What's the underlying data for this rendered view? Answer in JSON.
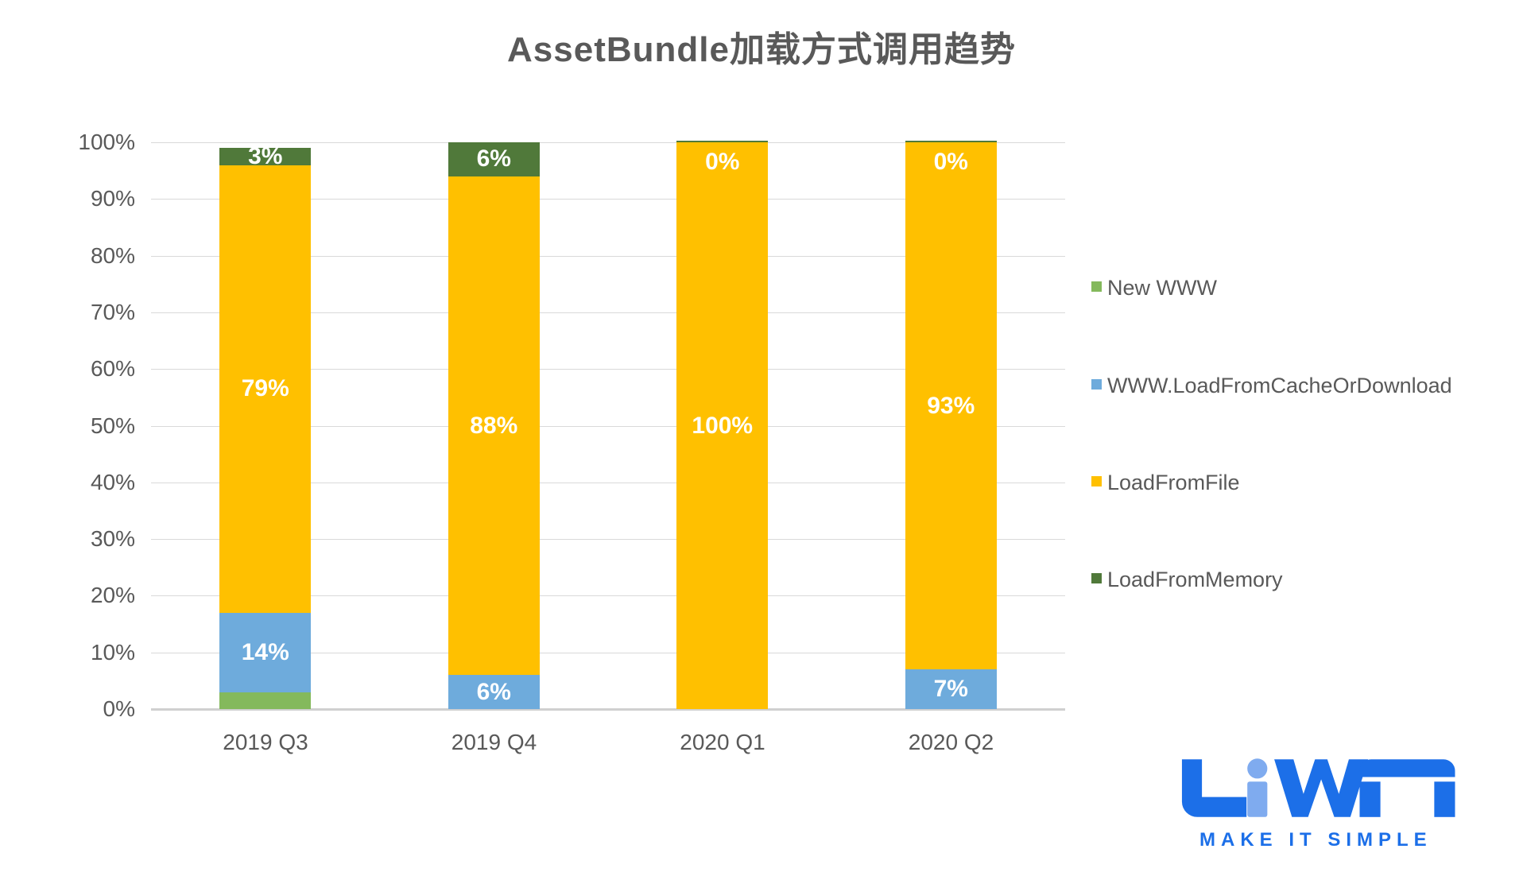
{
  "title": "AssetBundle加载方式调用趋势",
  "colors": {
    "new_www": "#84B95C",
    "cache": "#6EABDC",
    "file": "#FFC000",
    "memory": "#50793A",
    "grid": "#D9D9D9",
    "axis_text": "#595959",
    "value_label_text": "#FFFFFF",
    "logo_blue": "#1C6FE8",
    "logo_light_blue": "#7FABEF"
  },
  "chart_data": {
    "type": "bar",
    "stacked": true,
    "title": "AssetBundle加载方式调用趋势",
    "categories": [
      "2019 Q3",
      "2019 Q4",
      "2020 Q1",
      "2020 Q2"
    ],
    "series": [
      {
        "name": "New WWW",
        "color_key": "new_www",
        "values": [
          3,
          0,
          0,
          0
        ],
        "labels": [
          "",
          "",
          "",
          ""
        ]
      },
      {
        "name": "WWW.LoadFromCacheOrDownload",
        "color_key": "cache",
        "values": [
          14,
          6,
          0,
          7
        ],
        "labels": [
          "14%",
          "6%",
          "0%",
          "7%"
        ]
      },
      {
        "name": "LoadFromFile",
        "color_key": "file",
        "values": [
          79,
          88,
          100,
          93
        ],
        "labels": [
          "79%",
          "88%",
          "100%",
          "93%"
        ]
      },
      {
        "name": "LoadFromMemory",
        "color_key": "memory",
        "values": [
          3,
          6,
          0,
          0
        ],
        "labels": [
          "3%",
          "6%",
          "0%",
          "0%"
        ]
      }
    ],
    "y_ticks": [
      "100%",
      "90%",
      "80%",
      "70%",
      "60%",
      "50%",
      "40%",
      "30%",
      "20%",
      "10%",
      "0%"
    ],
    "ylim": [
      0,
      100
    ],
    "grid": true,
    "legend_position": "right"
  },
  "legend": {
    "items": [
      {
        "label": "New WWW",
        "color_key": "new_www"
      },
      {
        "label": "WWW.LoadFromCacheOrDownload",
        "color_key": "cache"
      },
      {
        "label": "LoadFromFile",
        "color_key": "file"
      },
      {
        "label": "LoadFromMemory",
        "color_key": "memory"
      }
    ]
  },
  "logo": {
    "brand": "LiWA",
    "tagline": "MAKE IT SIMPLE"
  }
}
